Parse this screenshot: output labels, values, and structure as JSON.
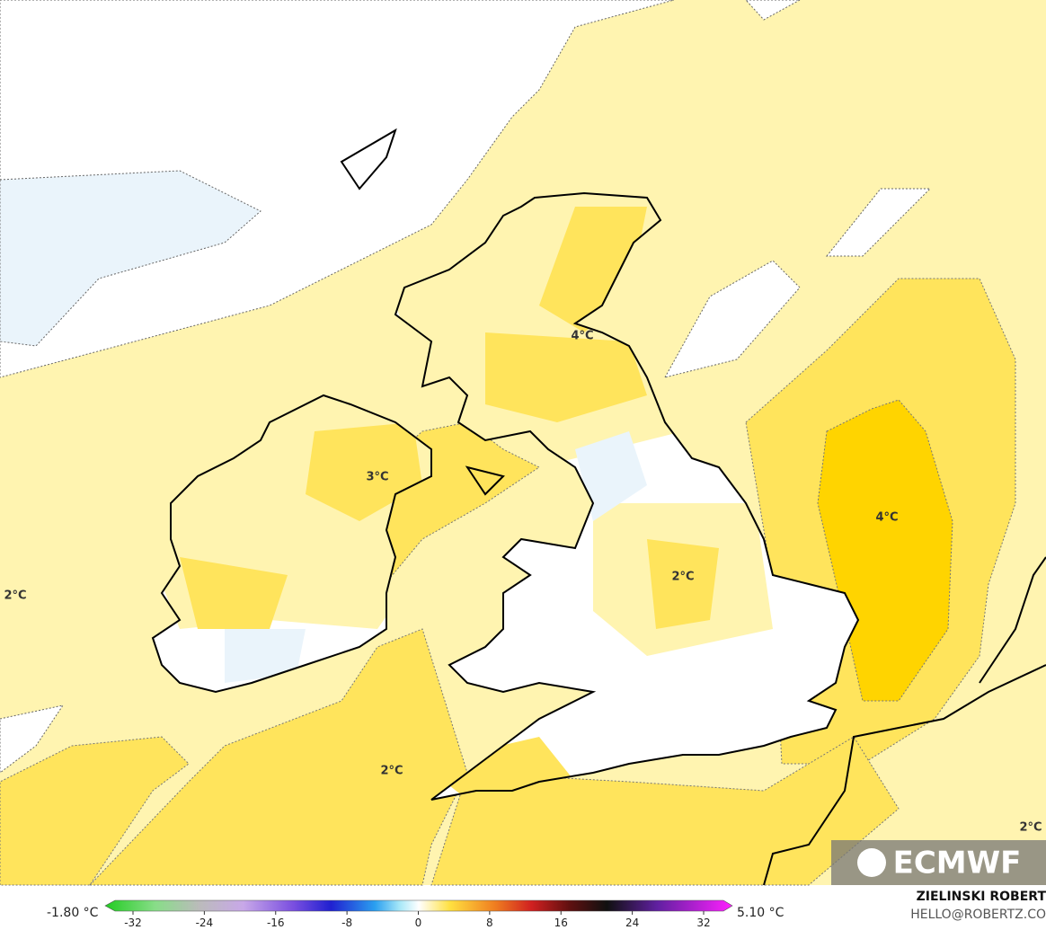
{
  "map": {
    "contour_labels": [
      "2°C",
      "3°C",
      "4°C",
      "2°C",
      "4°C",
      "2°C",
      "2°C"
    ],
    "logo": "ECMWF"
  },
  "legend": {
    "min_label": "-1.80 °C",
    "max_label": "5.10 °C",
    "ticks": [
      -32,
      -24,
      -16,
      -8,
      0,
      8,
      16,
      24,
      32
    ]
  },
  "credit": {
    "author": "ZIELINSKI ROBERT",
    "contact": "HELLO@ROBERTZ.CO"
  }
}
